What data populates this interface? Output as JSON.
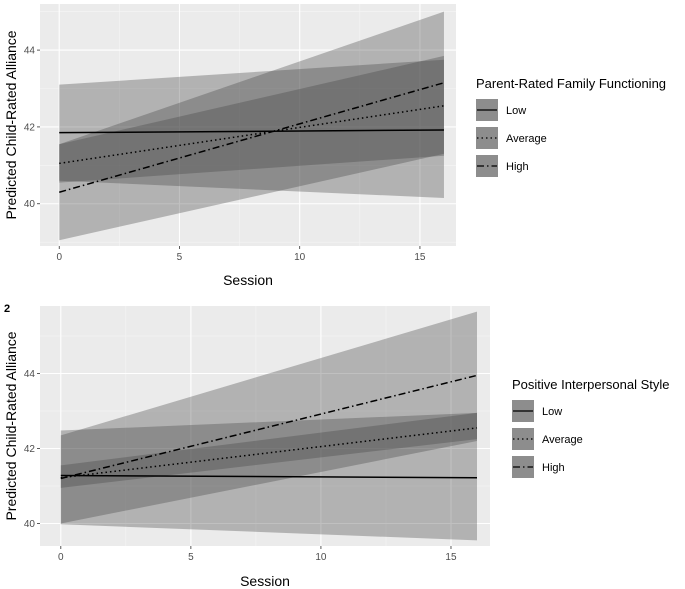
{
  "chart_data": [
    {
      "type": "line",
      "panel_tag": "",
      "xlabel": "Session",
      "ylabel": "Predicted Child-Rated Alliance",
      "xlim": [
        -0.8,
        16.5
      ],
      "ylim": [
        38.9,
        45.2
      ],
      "x_ticks": [
        0,
        5,
        10,
        15
      ],
      "y_ticks": [
        40,
        42,
        44
      ],
      "grid": true,
      "legend": {
        "title": "Parent-Rated Family Functioning",
        "position": "right"
      },
      "series": [
        {
          "name": "Low",
          "linestyle": "solid",
          "x": [
            0,
            16
          ],
          "y": [
            41.85,
            41.92
          ],
          "ci_lower": [
            40.6,
            40.15
          ],
          "ci_upper": [
            43.1,
            43.75
          ]
        },
        {
          "name": "Average",
          "linestyle": "dotted",
          "x": [
            0,
            16
          ],
          "y": [
            41.05,
            42.55
          ],
          "ci_lower": [
            40.55,
            41.25
          ],
          "ci_upper": [
            41.55,
            43.85
          ]
        },
        {
          "name": "High",
          "linestyle": "dotdash",
          "x": [
            0,
            16
          ],
          "y": [
            40.3,
            43.15
          ],
          "ci_lower": [
            39.05,
            41.3
          ],
          "ci_upper": [
            41.55,
            45.0
          ]
        }
      ]
    },
    {
      "type": "line",
      "panel_tag": "2",
      "xlabel": "Session",
      "ylabel": "Predicted Child-Rated Alliance",
      "xlim": [
        -0.8,
        16.5
      ],
      "ylim": [
        39.4,
        45.8
      ],
      "x_ticks": [
        0,
        5,
        10,
        15
      ],
      "y_ticks": [
        40,
        42,
        44
      ],
      "grid": true,
      "legend": {
        "title": "Positive Interpersonal Style",
        "position": "right"
      },
      "series": [
        {
          "name": "Low",
          "linestyle": "solid",
          "x": [
            0,
            16
          ],
          "y": [
            41.28,
            41.22
          ],
          "ci_lower": [
            39.98,
            39.55
          ],
          "ci_upper": [
            42.48,
            42.95
          ]
        },
        {
          "name": "Average",
          "linestyle": "dotted",
          "x": [
            0,
            16
          ],
          "y": [
            41.22,
            42.55
          ],
          "ci_lower": [
            40.95,
            42.25
          ],
          "ci_upper": [
            41.55,
            42.95
          ]
        },
        {
          "name": "High",
          "linestyle": "dotdash",
          "x": [
            0,
            16
          ],
          "y": [
            41.2,
            43.95
          ],
          "ci_lower": [
            40.0,
            42.2
          ],
          "ci_upper": [
            42.35,
            45.65
          ]
        }
      ]
    }
  ]
}
